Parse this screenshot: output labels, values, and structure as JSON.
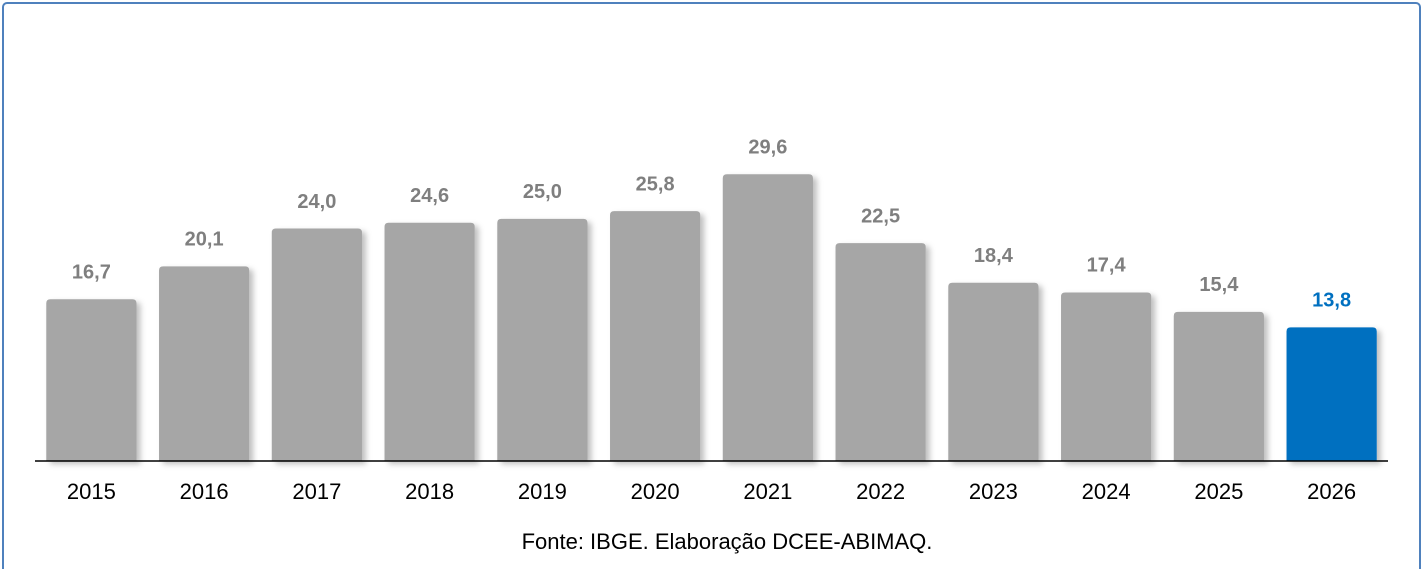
{
  "chart_data": {
    "type": "bar",
    "categories": [
      "2015",
      "2016",
      "2017",
      "2018",
      "2019",
      "2020",
      "2021",
      "2022",
      "2023",
      "2024",
      "2025",
      "2026"
    ],
    "values": [
      16.7,
      20.1,
      24.0,
      24.6,
      25.0,
      25.8,
      29.6,
      22.5,
      18.4,
      17.4,
      15.4,
      13.8
    ],
    "value_labels": [
      "16,7",
      "20,1",
      "24,0",
      "24,6",
      "25,0",
      "25,8",
      "29,6",
      "22,5",
      "18,4",
      "17,4",
      "15,4",
      "13,8"
    ],
    "colors": [
      "#a6a6a6",
      "#a6a6a6",
      "#a6a6a6",
      "#a6a6a6",
      "#a6a6a6",
      "#a6a6a6",
      "#a6a6a6",
      "#a6a6a6",
      "#a6a6a6",
      "#a6a6a6",
      "#a6a6a6",
      "#0070c0"
    ],
    "label_colors": [
      "#7f7f7f",
      "#7f7f7f",
      "#7f7f7f",
      "#7f7f7f",
      "#7f7f7f",
      "#7f7f7f",
      "#7f7f7f",
      "#7f7f7f",
      "#7f7f7f",
      "#7f7f7f",
      "#7f7f7f",
      "#0070c0"
    ],
    "ylim": [
      0,
      35
    ],
    "source": "Fonte: IBGE. Elaboração DCEE-ABIMAQ."
  }
}
